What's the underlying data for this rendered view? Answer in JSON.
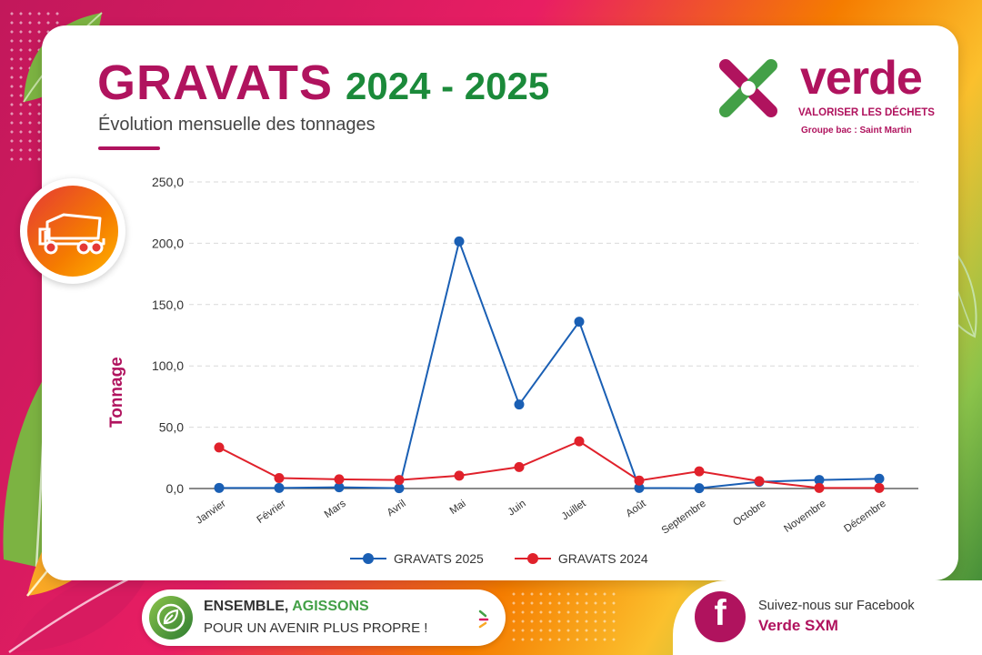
{
  "header": {
    "title_main": "GRAVATS",
    "title_years": "2024 - 2025",
    "subtitle": "Évolution mensuelle des tonnages"
  },
  "logo": {
    "word": "verde",
    "tagline": "VALORISER LES DÉCHETS",
    "group": "Groupe bac : Saint Martin"
  },
  "icons": {
    "badge": "dump-truck-icon",
    "pill": "recycle-leaves-icon",
    "social": "facebook-icon"
  },
  "colors": {
    "brand": "#b0135e",
    "green": "#1b8a3a",
    "series_2025": "#1a5fb4",
    "series_2024": "#e0212b"
  },
  "chart_data": {
    "type": "line",
    "title": "",
    "xlabel": "",
    "ylabel": "Tonnage",
    "ylim": [
      0,
      250
    ],
    "yticks": [
      "0,0",
      "50,0",
      "100,0",
      "150,0",
      "200,0",
      "250,0"
    ],
    "ytick_values": [
      0,
      50,
      100,
      150,
      200,
      250
    ],
    "grid": true,
    "legend_position": "bottom",
    "categories": [
      "Janvier",
      "Février",
      "Mars",
      "Avril",
      "Mai",
      "Juin",
      "Juillet",
      "Août",
      "Septembre",
      "Octobre",
      "Novembre",
      "Décembre"
    ],
    "series": [
      {
        "name": "GRAVATS 2025",
        "color": "#1a5fb4",
        "values": [
          0.5,
          0.5,
          1.0,
          0.3,
          201.5,
          68.5,
          136.0,
          0.5,
          0.3,
          5.5,
          7.0,
          8.0
        ]
      },
      {
        "name": "GRAVATS 2024",
        "color": "#e0212b",
        "values": [
          33.5,
          8.5,
          7.5,
          7.0,
          10.5,
          17.5,
          38.5,
          6.5,
          14.0,
          6.0,
          0.5,
          0.5
        ]
      }
    ]
  },
  "footer": {
    "slogan_line1_a": "ENSEMBLE,",
    "slogan_line1_b": "AGISSONS",
    "slogan_line2": "POUR UN AVENIR PLUS PROPRE !",
    "facebook_line1": "Suivez-nous sur Facebook",
    "facebook_line2": "Verde SXM"
  }
}
